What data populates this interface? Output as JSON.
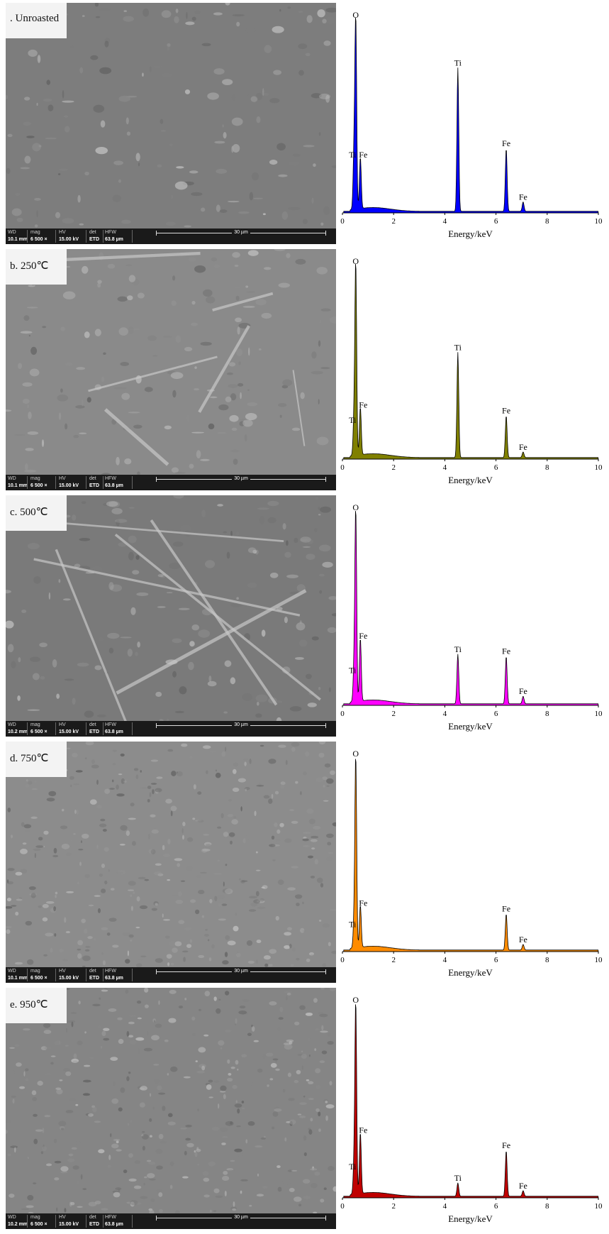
{
  "panels": [
    {
      "label": ". Unroasted",
      "sem": {
        "wd": "10.1 mm",
        "mag": "6 500 ×",
        "hv": "15.00 kV",
        "det": "ETD",
        "hfw": "63.8 µm",
        "scale": "30 µm"
      }
    },
    {
      "label": "b. 250℃",
      "sem": {
        "wd": "10.1 mm",
        "mag": "6 500 ×",
        "hv": "15.00 kV",
        "det": "ETD",
        "hfw": "63.8 µm",
        "scale": "30 µm"
      }
    },
    {
      "label": "c. 500℃",
      "sem": {
        "wd": "10.2 mm",
        "mag": "6 500 ×",
        "hv": "15.00 kV",
        "det": "ETD",
        "hfw": "63.8 µm",
        "scale": "30 µm"
      }
    },
    {
      "label": "d. 750℃",
      "sem": {
        "wd": "10.1 mm",
        "mag": "6 500 ×",
        "hv": "15.00 kV",
        "det": "ETD",
        "hfw": "63.8 µm",
        "scale": "30 µm"
      }
    },
    {
      "label": "e. 950℃",
      "sem": {
        "wd": "10.2 mm",
        "mag": "6 500 ×",
        "hv": "15.00 kV",
        "det": "ETD",
        "hfw": "63.8 µm",
        "scale": "30 µm"
      }
    }
  ],
  "sem_header": {
    "wd": "WD",
    "mag": "mag",
    "hv": "HV",
    "det": "det",
    "hfw": "HFW"
  },
  "chart_data": [
    {
      "type": "area",
      "color": "#0000ff",
      "xlabel": "Energy/keV",
      "xlim": [
        0,
        10
      ],
      "xticks": [
        "0",
        "2",
        "4",
        "6",
        "8",
        "10"
      ],
      "peaks": [
        {
          "label": "Ti",
          "x": 0.45,
          "y": 0.27
        },
        {
          "label": "O",
          "x": 0.52,
          "y": 1.0
        },
        {
          "label": "Fe",
          "x": 0.7,
          "y": 0.27
        },
        {
          "label": "Ti",
          "x": 4.51,
          "y": 0.75
        },
        {
          "label": "Fe",
          "x": 6.4,
          "y": 0.33
        },
        {
          "label": "Fe",
          "x": 7.06,
          "y": 0.05
        }
      ]
    },
    {
      "type": "area",
      "color": "#808000",
      "xlabel": "Energy/keV",
      "xlim": [
        0,
        10
      ],
      "xticks": [
        "0",
        "2",
        "4",
        "6",
        "8",
        "10"
      ],
      "peaks": [
        {
          "label": "Ti",
          "x": 0.45,
          "y": 0.17
        },
        {
          "label": "O",
          "x": 0.52,
          "y": 1.0
        },
        {
          "label": "Fe",
          "x": 0.7,
          "y": 0.25
        },
        {
          "label": "Ti",
          "x": 4.51,
          "y": 0.55
        },
        {
          "label": "Fe",
          "x": 6.4,
          "y": 0.22
        },
        {
          "label": "Fe",
          "x": 7.06,
          "y": 0.03
        }
      ]
    },
    {
      "type": "area",
      "color": "#ff00ff",
      "xlabel": "Energy/keV",
      "xlim": [
        0,
        10
      ],
      "xticks": [
        "0",
        "2",
        "4",
        "6",
        "8",
        "10"
      ],
      "peaks": [
        {
          "label": "Ti",
          "x": 0.45,
          "y": 0.15
        },
        {
          "label": "O",
          "x": 0.52,
          "y": 1.0
        },
        {
          "label": "Fe",
          "x": 0.7,
          "y": 0.33
        },
        {
          "label": "Ti",
          "x": 4.51,
          "y": 0.26
        },
        {
          "label": "Fe",
          "x": 6.4,
          "y": 0.25
        },
        {
          "label": "Fe",
          "x": 7.06,
          "y": 0.04
        }
      ]
    },
    {
      "type": "area",
      "color": "#ff8c00",
      "xlabel": "Energy/keV",
      "xlim": [
        0,
        10
      ],
      "xticks": [
        "0",
        "2",
        "4",
        "6",
        "8",
        "10"
      ],
      "peaks": [
        {
          "label": "Ti",
          "x": 0.45,
          "y": 0.11
        },
        {
          "label": "O",
          "x": 0.52,
          "y": 1.0
        },
        {
          "label": "Fe",
          "x": 0.7,
          "y": 0.22
        },
        {
          "label": "Fe",
          "x": 6.4,
          "y": 0.19
        },
        {
          "label": "Fe",
          "x": 7.06,
          "y": 0.03
        }
      ]
    },
    {
      "type": "area",
      "color": "#c00000",
      "xlabel": "Energy/keV",
      "xlim": [
        0,
        10
      ],
      "xticks": [
        "0",
        "2",
        "4",
        "6",
        "8",
        "10"
      ],
      "peaks": [
        {
          "label": "Ti",
          "x": 0.45,
          "y": 0.13
        },
        {
          "label": "O",
          "x": 0.52,
          "y": 1.0
        },
        {
          "label": "Fe",
          "x": 0.7,
          "y": 0.32
        },
        {
          "label": "Ti",
          "x": 4.51,
          "y": 0.07
        },
        {
          "label": "Fe",
          "x": 6.4,
          "y": 0.24
        },
        {
          "label": "Fe",
          "x": 7.06,
          "y": 0.03
        }
      ]
    }
  ]
}
